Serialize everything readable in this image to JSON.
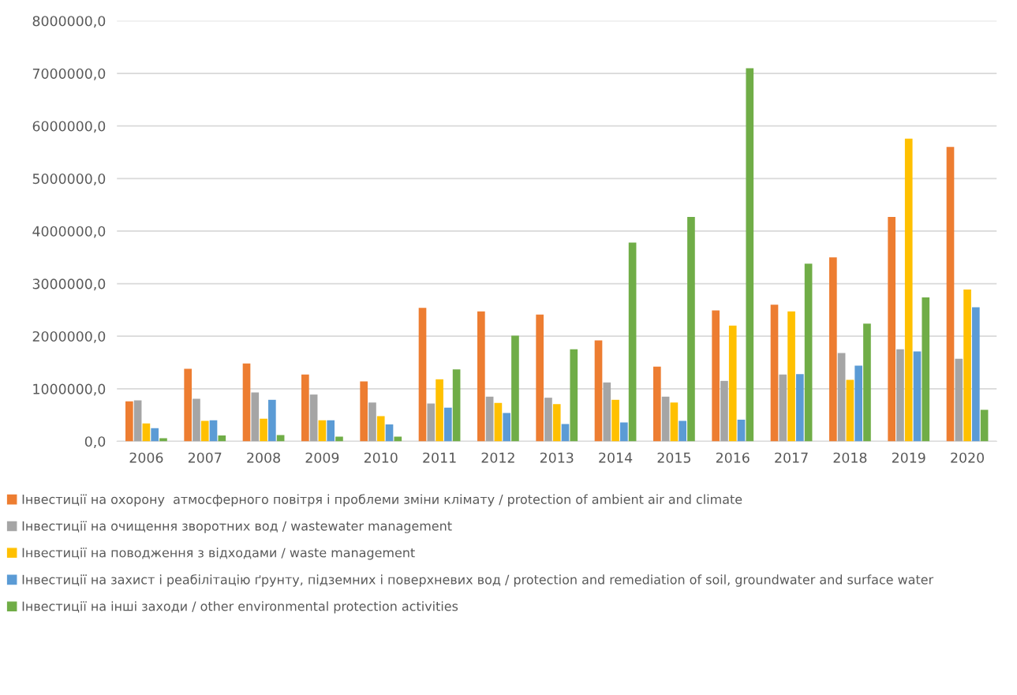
{
  "chart_data": {
    "type": "bar",
    "categories": [
      "2006",
      "2007",
      "2008",
      "2009",
      "2010",
      "2011",
      "2012",
      "2013",
      "2014",
      "2015",
      "2016",
      "2017",
      "2018",
      "2019",
      "2020"
    ],
    "series": [
      {
        "name": "Інвестиції на охорону  атмосферного повітря і проблеми зміни клімату / protection of ambient air and climate",
        "color": "#ed7d31",
        "values": [
          760000,
          1380000,
          1480000,
          1270000,
          1140000,
          2540000,
          2470000,
          2410000,
          1920000,
          1420000,
          2490000,
          2600000,
          3500000,
          4270000,
          5600000
        ]
      },
      {
        "name": "Інвестиції на очищення зворотних вод / wastewater management",
        "color": "#a5a5a5",
        "values": [
          780000,
          810000,
          930000,
          890000,
          740000,
          720000,
          850000,
          830000,
          1120000,
          850000,
          1150000,
          1270000,
          1680000,
          1750000,
          1570000
        ]
      },
      {
        "name": "Інвестиції на поводження з відходами / waste management",
        "color": "#ffc000",
        "values": [
          340000,
          390000,
          430000,
          400000,
          480000,
          1180000,
          730000,
          710000,
          790000,
          740000,
          2200000,
          2470000,
          1170000,
          5760000,
          2890000
        ]
      },
      {
        "name": "Інвестиції на захист і реабілітацію ґрунту, підземних і поверхневих вод / protection and remediation of soil, groundwater and surface water",
        "color": "#5b9bd5",
        "values": [
          250000,
          400000,
          790000,
          400000,
          320000,
          640000,
          540000,
          330000,
          360000,
          390000,
          410000,
          1280000,
          1440000,
          1710000,
          2550000
        ]
      },
      {
        "name": "Інвестиції на інші заходи / other environmental protection activities",
        "color": "#70ad47",
        "values": [
          60000,
          110000,
          120000,
          90000,
          90000,
          1370000,
          2010000,
          1750000,
          3780000,
          4270000,
          7100000,
          3380000,
          2240000,
          2740000,
          600000
        ]
      }
    ],
    "ylim": [
      0,
      8000000
    ],
    "yticks": [
      {
        "value": 0,
        "label": "0,0"
      },
      {
        "value": 1000000,
        "label": "1000000,0"
      },
      {
        "value": 2000000,
        "label": "2000000,0"
      },
      {
        "value": 3000000,
        "label": "3000000,0"
      },
      {
        "value": 4000000,
        "label": "4000000,0"
      },
      {
        "value": 5000000,
        "label": "5000000,0"
      },
      {
        "value": 6000000,
        "label": "6000000,0"
      },
      {
        "value": 7000000,
        "label": "7000000,0"
      },
      {
        "value": 8000000,
        "label": "8000000,0"
      }
    ],
    "grid": "y",
    "legend": "bottom"
  }
}
